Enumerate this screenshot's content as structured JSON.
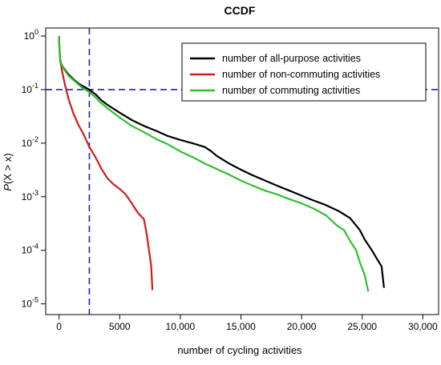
{
  "chart_data": {
    "type": "line",
    "title": "CCDF",
    "xlabel": "number of cycling activities",
    "ylabel_var": "P",
    "ylabel_rest": "(X > x)",
    "x_scale": "linear",
    "y_scale": "log",
    "xlim": [
      -1100,
      31300
    ],
    "ylim_log10": [
      -5.2,
      0.15
    ],
    "grid": false,
    "legend_position": "top-right",
    "x_ticks": [
      {
        "value": 0,
        "label": "0"
      },
      {
        "value": 5000,
        "label": "5000"
      },
      {
        "value": 10000,
        "label": "10,000"
      },
      {
        "value": 15000,
        "label": "15,000"
      },
      {
        "value": 20000,
        "label": "20,000"
      },
      {
        "value": 25000,
        "label": "25,000"
      },
      {
        "value": 30000,
        "label": "30,000"
      }
    ],
    "y_ticks": [
      {
        "value": 1,
        "base": "10",
        "exp": "0"
      },
      {
        "value": 0.1,
        "base": "10",
        "exp": "-1"
      },
      {
        "value": 0.01,
        "base": "10",
        "exp": "-2"
      },
      {
        "value": 0.001,
        "base": "10",
        "exp": "-3"
      },
      {
        "value": 0.0001,
        "base": "10",
        "exp": "-4"
      },
      {
        "value": 1e-05,
        "base": "10",
        "exp": "-5"
      }
    ],
    "reference_lines": {
      "color": "#1f1fb4",
      "x_value": 2500,
      "y_value": 0.1
    },
    "series": [
      {
        "name": "number of all-purpose activities",
        "color": "#000000",
        "points": [
          [
            0,
            1.0
          ],
          [
            30,
            0.6
          ],
          [
            80,
            0.4
          ],
          [
            150,
            0.32
          ],
          [
            300,
            0.27
          ],
          [
            500,
            0.23
          ],
          [
            800,
            0.19
          ],
          [
            1200,
            0.155
          ],
          [
            1600,
            0.13
          ],
          [
            2000,
            0.115
          ],
          [
            2500,
            0.1
          ],
          [
            3000,
            0.082
          ],
          [
            3500,
            0.063
          ],
          [
            4000,
            0.052
          ],
          [
            5000,
            0.037
          ],
          [
            6000,
            0.027
          ],
          [
            7000,
            0.021
          ],
          [
            8000,
            0.017
          ],
          [
            9000,
            0.0135
          ],
          [
            10000,
            0.0115
          ],
          [
            11000,
            0.01
          ],
          [
            12000,
            0.0085
          ],
          [
            12500,
            0.0072
          ],
          [
            13000,
            0.0058
          ],
          [
            14000,
            0.0042
          ],
          [
            15000,
            0.0032
          ],
          [
            16000,
            0.0025
          ],
          [
            17000,
            0.002
          ],
          [
            18000,
            0.0016
          ],
          [
            19000,
            0.0013
          ],
          [
            20000,
            0.00105
          ],
          [
            21000,
            0.00085
          ],
          [
            22000,
            0.0007
          ],
          [
            23000,
            0.00055
          ],
          [
            24000,
            0.0004
          ],
          [
            24800,
            0.00024
          ],
          [
            25200,
            0.00016
          ],
          [
            25800,
            0.0001
          ],
          [
            26200,
            7e-05
          ],
          [
            26600,
            5e-05
          ],
          [
            26800,
            2e-05
          ]
        ]
      },
      {
        "name": "number of non-commuting activities",
        "color": "#d01c1c",
        "points": [
          [
            0,
            1.0
          ],
          [
            40,
            0.55
          ],
          [
            100,
            0.35
          ],
          [
            250,
            0.22
          ],
          [
            500,
            0.12
          ],
          [
            800,
            0.065
          ],
          [
            1200,
            0.035
          ],
          [
            1600,
            0.022
          ],
          [
            2000,
            0.015
          ],
          [
            2500,
            0.0085
          ],
          [
            3000,
            0.0055
          ],
          [
            3500,
            0.0033
          ],
          [
            4000,
            0.0022
          ],
          [
            4500,
            0.0017
          ],
          [
            5000,
            0.0014
          ],
          [
            5500,
            0.0011
          ],
          [
            6000,
            0.00075
          ],
          [
            6500,
            0.0005
          ],
          [
            7000,
            0.00038
          ],
          [
            7200,
            0.00022
          ],
          [
            7400,
            0.00011
          ],
          [
            7600,
            5e-05
          ],
          [
            7700,
            1.8e-05
          ]
        ]
      },
      {
        "name": "number of commuting activities",
        "color": "#2fbf2f",
        "points": [
          [
            0,
            1.0
          ],
          [
            30,
            0.58
          ],
          [
            80,
            0.38
          ],
          [
            200,
            0.3
          ],
          [
            400,
            0.24
          ],
          [
            800,
            0.18
          ],
          [
            1200,
            0.15
          ],
          [
            1600,
            0.125
          ],
          [
            2000,
            0.105
          ],
          [
            2500,
            0.09
          ],
          [
            3000,
            0.072
          ],
          [
            3500,
            0.055
          ],
          [
            4000,
            0.045
          ],
          [
            5000,
            0.03
          ],
          [
            6000,
            0.021
          ],
          [
            7000,
            0.016
          ],
          [
            8000,
            0.012
          ],
          [
            9000,
            0.0095
          ],
          [
            10000,
            0.007
          ],
          [
            11000,
            0.0055
          ],
          [
            12000,
            0.0042
          ],
          [
            13000,
            0.0033
          ],
          [
            14000,
            0.0026
          ],
          [
            15000,
            0.002
          ],
          [
            16000,
            0.0016
          ],
          [
            17000,
            0.0013
          ],
          [
            18000,
            0.0011
          ],
          [
            19000,
            0.0009
          ],
          [
            20000,
            0.00075
          ],
          [
            21000,
            0.0006
          ],
          [
            22000,
            0.00045
          ],
          [
            23000,
            0.00028
          ],
          [
            23500,
            0.00024
          ],
          [
            24000,
            0.00015
          ],
          [
            24500,
            0.0001
          ],
          [
            24800,
            6e-05
          ],
          [
            25200,
            3.5e-05
          ],
          [
            25500,
            1.7e-05
          ]
        ]
      }
    ]
  }
}
